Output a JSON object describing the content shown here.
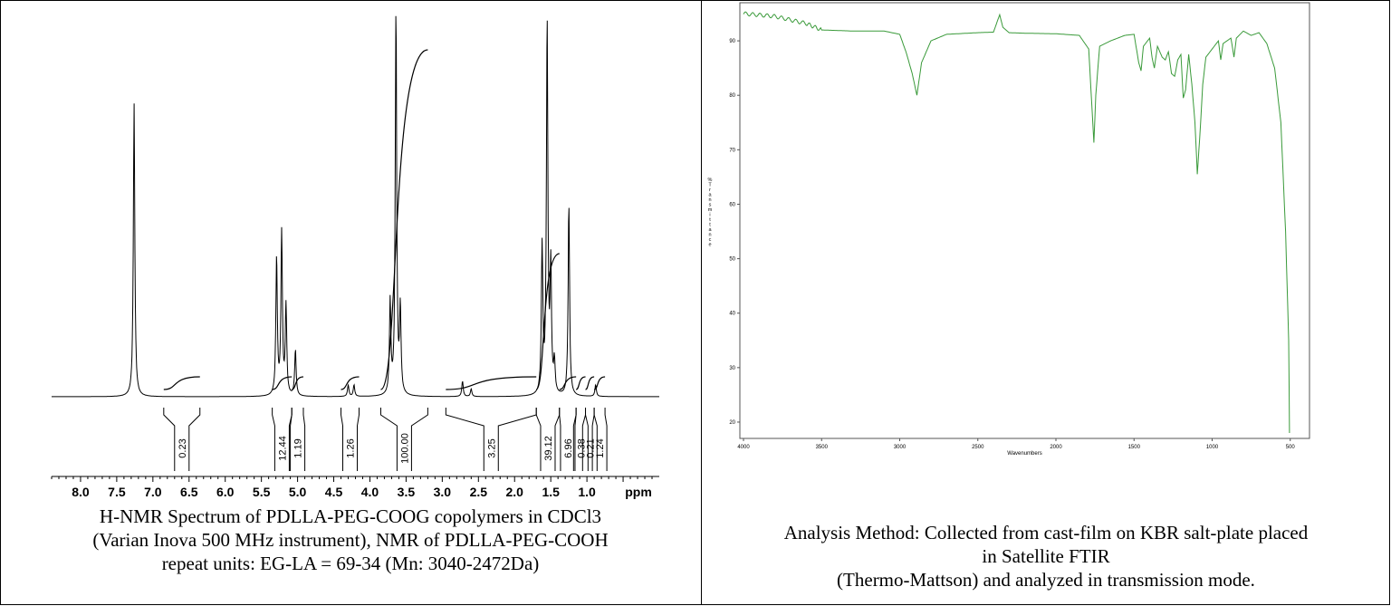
{
  "left_caption": {
    "line1": "H-NMR Spectrum of PDLLA-PEG-COOG copolymers in CDCl3",
    "line2": "(Varian Inova 500 MHz instrument),  NMR of PDLLA-PEG-COOH",
    "line3": "repeat units: EG-LA = 69-34 (Mn: 3040-2472Da)"
  },
  "right_caption": {
    "line1": "Analysis Method: Collected from cast-film on KBR salt-plate placed",
    "line2": "in Satellite FTIR",
    "line3": "(Thermo-Mattson) and analyzed in transmission mode."
  },
  "chart_data": [
    {
      "type": "line",
      "title": "",
      "xlabel": "ppm",
      "ylabel": "",
      "xlim": [
        8.4,
        0.0
      ],
      "x_reversed": true,
      "x_ticks": [
        "8.0",
        "7.5",
        "7.0",
        "6.5",
        "6.0",
        "5.5",
        "5.0",
        "4.5",
        "4.0",
        "3.5",
        "3.0",
        "2.5",
        "2.0",
        "1.5",
        "1.0"
      ],
      "x_tick_values": [
        8.0,
        7.5,
        7.0,
        6.5,
        6.0,
        5.5,
        5.0,
        4.5,
        4.0,
        3.5,
        3.0,
        2.5,
        2.0,
        1.5,
        1.0
      ],
      "series_color": "#000000",
      "peaks": [
        {
          "ppm": 7.26,
          "height": 0.76
        },
        {
          "ppm": 5.29,
          "height": 0.36
        },
        {
          "ppm": 5.22,
          "height": 0.42
        },
        {
          "ppm": 5.16,
          "height": 0.23
        },
        {
          "ppm": 5.03,
          "height": 0.12
        },
        {
          "ppm": 4.3,
          "height": 0.03
        },
        {
          "ppm": 4.22,
          "height": 0.03
        },
        {
          "ppm": 3.72,
          "height": 0.24
        },
        {
          "ppm": 3.64,
          "height": 1.0
        },
        {
          "ppm": 3.58,
          "height": 0.22
        },
        {
          "ppm": 2.72,
          "height": 0.04
        },
        {
          "ppm": 2.6,
          "height": 0.02
        },
        {
          "ppm": 1.62,
          "height": 0.38
        },
        {
          "ppm": 1.55,
          "height": 0.97
        },
        {
          "ppm": 1.5,
          "height": 0.32
        },
        {
          "ppm": 1.45,
          "height": 0.08
        },
        {
          "ppm": 1.25,
          "height": 0.5
        },
        {
          "ppm": 0.88,
          "height": 0.03
        }
      ],
      "integrals": [
        {
          "label": "0.23",
          "from": 6.85,
          "to": 6.35
        },
        {
          "label": "12.44",
          "from": 5.35,
          "to": 5.08
        },
        {
          "label": "1.19",
          "from": 5.08,
          "to": 4.92
        },
        {
          "label": "1.26",
          "from": 4.4,
          "to": 4.15
        },
        {
          "label": "100.00",
          "from": 3.85,
          "to": 3.2
        },
        {
          "label": "3.25",
          "from": 2.95,
          "to": 1.7
        },
        {
          "label": "39.12",
          "from": 1.7,
          "to": 1.38
        },
        {
          "label": "6.96",
          "from": 1.38,
          "to": 1.15
        },
        {
          "label": "0.38",
          "from": 1.15,
          "to": 1.02
        },
        {
          "label": "0.21",
          "from": 1.02,
          "to": 0.9
        },
        {
          "label": "1.24",
          "from": 0.9,
          "to": 0.75
        }
      ]
    },
    {
      "type": "line",
      "title": "",
      "xlabel": "Wavenumbers",
      "ylabel": "% Transmittance",
      "xlim": [
        4000,
        400
      ],
      "x_reversed": true,
      "ylim": [
        17,
        97
      ],
      "x_ticks": [
        "4000",
        "3500",
        "3000",
        "2500",
        "2000",
        "1500",
        "1000",
        "500"
      ],
      "x_tick_values": [
        4000,
        3500,
        3000,
        2500,
        2000,
        1500,
        1000,
        500
      ],
      "y_ticks": [
        "20",
        "30",
        "40",
        "50",
        "60",
        "70",
        "80",
        "90"
      ],
      "y_tick_values": [
        20,
        30,
        40,
        50,
        60,
        70,
        80,
        90
      ],
      "series_color": "#3a9a3a",
      "points": [
        [
          4000,
          95.0
        ],
        [
          3800,
          94.5
        ],
        [
          3600,
          93.2
        ],
        [
          3500,
          92.0
        ],
        [
          3300,
          91.8
        ],
        [
          3100,
          91.8
        ],
        [
          3000,
          91.2
        ],
        [
          2960,
          88.0
        ],
        [
          2920,
          84.0
        ],
        [
          2890,
          80.0
        ],
        [
          2860,
          86.0
        ],
        [
          2800,
          90.0
        ],
        [
          2700,
          91.2
        ],
        [
          2500,
          91.5
        ],
        [
          2400,
          91.6
        ],
        [
          2360,
          94.8
        ],
        [
          2340,
          92.5
        ],
        [
          2300,
          91.5
        ],
        [
          2200,
          91.4
        ],
        [
          2000,
          91.3
        ],
        [
          1850,
          91.0
        ],
        [
          1790,
          88.5
        ],
        [
          1770,
          78.0
        ],
        [
          1757,
          71.3
        ],
        [
          1745,
          80.0
        ],
        [
          1720,
          89.0
        ],
        [
          1650,
          90.0
        ],
        [
          1560,
          91.0
        ],
        [
          1500,
          91.2
        ],
        [
          1470,
          86.0
        ],
        [
          1455,
          84.5
        ],
        [
          1440,
          89.0
        ],
        [
          1400,
          90.5
        ],
        [
          1385,
          87.0
        ],
        [
          1370,
          85.0
        ],
        [
          1350,
          89.0
        ],
        [
          1320,
          87.0
        ],
        [
          1300,
          86.5
        ],
        [
          1280,
          88.0
        ],
        [
          1260,
          84.0
        ],
        [
          1240,
          83.5
        ],
        [
          1220,
          86.5
        ],
        [
          1200,
          87.5
        ],
        [
          1185,
          79.5
        ],
        [
          1170,
          81.0
        ],
        [
          1150,
          87.5
        ],
        [
          1130,
          82.0
        ],
        [
          1110,
          75.0
        ],
        [
          1095,
          65.5
        ],
        [
          1080,
          72.0
        ],
        [
          1060,
          82.0
        ],
        [
          1040,
          87.0
        ],
        [
          1000,
          88.5
        ],
        [
          960,
          90.0
        ],
        [
          945,
          86.5
        ],
        [
          930,
          89.5
        ],
        [
          880,
          90.5
        ],
        [
          860,
          87.0
        ],
        [
          845,
          90.5
        ],
        [
          800,
          91.8
        ],
        [
          750,
          91.0
        ],
        [
          700,
          91.5
        ],
        [
          650,
          89.5
        ],
        [
          600,
          85.0
        ],
        [
          560,
          75.0
        ],
        [
          530,
          55.0
        ],
        [
          510,
          35.0
        ],
        [
          505,
          18.0
        ]
      ]
    }
  ]
}
